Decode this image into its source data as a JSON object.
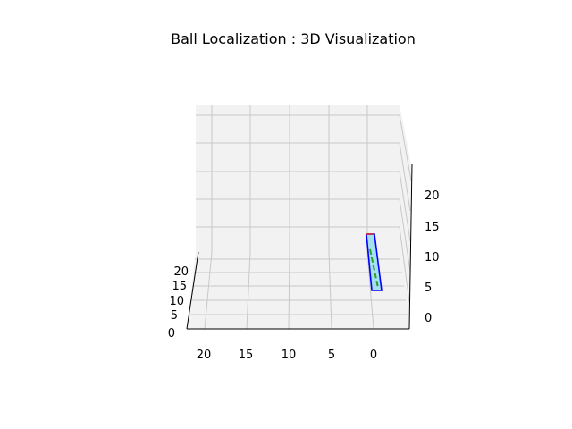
{
  "chart_data": {
    "type": "3d-line",
    "title": "Ball Localization : 3D Visualization",
    "x_axis": {
      "ticks": [
        "20",
        "15",
        "10",
        "5",
        "0"
      ]
    },
    "y_axis": {
      "ticks": [
        "20",
        "15",
        "10",
        "5",
        "0"
      ]
    },
    "z_axis": {
      "ticks": [
        "20",
        "15",
        "10",
        "5",
        "0"
      ]
    },
    "grid": true,
    "series": [
      {
        "color": "#0000ff",
        "kind": "outline"
      },
      {
        "color": "#d62728",
        "kind": "edge"
      },
      {
        "color": "#2ca02c",
        "kind": "trajectory",
        "style": "dashed"
      }
    ],
    "fill_color": "#a6dff0"
  }
}
